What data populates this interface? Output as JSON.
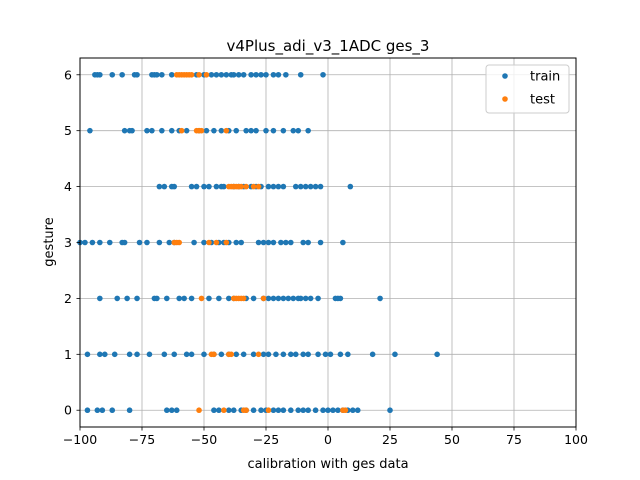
{
  "chart_data": {
    "type": "scatter",
    "title": "v4Plus_adi_v3_1ADC ges_3",
    "xlabel": "calibration with ges data",
    "ylabel": "gesture",
    "xlim": [
      -100,
      100
    ],
    "ylim": [
      -0.3,
      6.3
    ],
    "x_ticks": [
      -100,
      -75,
      -50,
      -25,
      0,
      25,
      50,
      75,
      100
    ],
    "x_tick_labels": [
      "−100",
      "−75",
      "−50",
      "−25",
      "0",
      "25",
      "50",
      "75",
      "100"
    ],
    "y_ticks": [
      0,
      1,
      2,
      3,
      4,
      5,
      6
    ],
    "y_tick_labels": [
      "0",
      "1",
      "2",
      "3",
      "4",
      "5",
      "6"
    ],
    "grid": true,
    "legend_position": "top-right",
    "series": [
      {
        "name": "train",
        "color": "#1f77b4",
        "points": [
          [
            -97,
            0
          ],
          [
            -93,
            0
          ],
          [
            -91,
            0
          ],
          [
            -87,
            0
          ],
          [
            -80,
            0
          ],
          [
            -65,
            0
          ],
          [
            -63,
            0
          ],
          [
            -61,
            0
          ],
          [
            -46,
            0
          ],
          [
            -44,
            0
          ],
          [
            -40,
            0
          ],
          [
            -38,
            0
          ],
          [
            -35,
            0
          ],
          [
            -33,
            0
          ],
          [
            -30,
            0
          ],
          [
            -27,
            0
          ],
          [
            -25,
            0
          ],
          [
            -22,
            0
          ],
          [
            -20,
            0
          ],
          [
            -18,
            0
          ],
          [
            -15,
            0
          ],
          [
            -12,
            0
          ],
          [
            -10,
            0
          ],
          [
            -8,
            0
          ],
          [
            -5,
            0
          ],
          [
            -2,
            0
          ],
          [
            0,
            0
          ],
          [
            2,
            0
          ],
          [
            4,
            0
          ],
          [
            6,
            0
          ],
          [
            8,
            0
          ],
          [
            10,
            0
          ],
          [
            12,
            0
          ],
          [
            25,
            0
          ],
          [
            -97,
            1
          ],
          [
            -92,
            1
          ],
          [
            -90,
            1
          ],
          [
            -86,
            1
          ],
          [
            -80,
            1
          ],
          [
            -77,
            1
          ],
          [
            -72,
            1
          ],
          [
            -66,
            1
          ],
          [
            -62,
            1
          ],
          [
            -57,
            1
          ],
          [
            -55,
            1
          ],
          [
            -50,
            1
          ],
          [
            -46,
            1
          ],
          [
            -43,
            1
          ],
          [
            -40,
            1
          ],
          [
            -37,
            1
          ],
          [
            -34,
            1
          ],
          [
            -30,
            1
          ],
          [
            -26,
            1
          ],
          [
            -24,
            1
          ],
          [
            -21,
            1
          ],
          [
            -18,
            1
          ],
          [
            -15,
            1
          ],
          [
            -13,
            1
          ],
          [
            -10,
            1
          ],
          [
            -8,
            1
          ],
          [
            -4,
            1
          ],
          [
            -1,
            1
          ],
          [
            1,
            1
          ],
          [
            5,
            1
          ],
          [
            8,
            1
          ],
          [
            18,
            1
          ],
          [
            27,
            1
          ],
          [
            44,
            1
          ],
          [
            -92,
            2
          ],
          [
            -85,
            2
          ],
          [
            -81,
            2
          ],
          [
            -77,
            2
          ],
          [
            -70,
            2
          ],
          [
            -69,
            2
          ],
          [
            -65,
            2
          ],
          [
            -60,
            2
          ],
          [
            -58,
            2
          ],
          [
            -55,
            2
          ],
          [
            -48,
            2
          ],
          [
            -44,
            2
          ],
          [
            -40,
            2
          ],
          [
            -38,
            2
          ],
          [
            -33,
            2
          ],
          [
            -30,
            2
          ],
          [
            -26,
            2
          ],
          [
            -24,
            2
          ],
          [
            -22,
            2
          ],
          [
            -20,
            2
          ],
          [
            -18,
            2
          ],
          [
            -16,
            2
          ],
          [
            -14,
            2
          ],
          [
            -12,
            2
          ],
          [
            -11,
            2
          ],
          [
            -9,
            2
          ],
          [
            -7,
            2
          ],
          [
            -4,
            2
          ],
          [
            3,
            2
          ],
          [
            4,
            2
          ],
          [
            5,
            2
          ],
          [
            21,
            2
          ],
          [
            -100,
            3
          ],
          [
            -98,
            3
          ],
          [
            -95,
            3
          ],
          [
            -92,
            3
          ],
          [
            -88,
            3
          ],
          [
            -83,
            3
          ],
          [
            -82,
            3
          ],
          [
            -76,
            3
          ],
          [
            -73,
            3
          ],
          [
            -68,
            3
          ],
          [
            -64,
            3
          ],
          [
            -62,
            3
          ],
          [
            -54,
            3
          ],
          [
            -50,
            3
          ],
          [
            -47,
            3
          ],
          [
            -44,
            3
          ],
          [
            -42,
            3
          ],
          [
            -40,
            3
          ],
          [
            -37,
            3
          ],
          [
            -35,
            3
          ],
          [
            -28,
            3
          ],
          [
            -26,
            3
          ],
          [
            -24,
            3
          ],
          [
            -22,
            3
          ],
          [
            -19,
            3
          ],
          [
            -17,
            3
          ],
          [
            -15,
            3
          ],
          [
            -10,
            3
          ],
          [
            -8,
            3
          ],
          [
            -3,
            3
          ],
          [
            6,
            3
          ],
          [
            -68,
            4
          ],
          [
            -66,
            4
          ],
          [
            -63,
            4
          ],
          [
            -62,
            4
          ],
          [
            -55,
            4
          ],
          [
            -53,
            4
          ],
          [
            -50,
            4
          ],
          [
            -48,
            4
          ],
          [
            -45,
            4
          ],
          [
            -43,
            4
          ],
          [
            -42,
            4
          ],
          [
            -38,
            4
          ],
          [
            -36,
            4
          ],
          [
            -34,
            4
          ],
          [
            -31,
            4
          ],
          [
            -29,
            4
          ],
          [
            -27,
            4
          ],
          [
            -24,
            4
          ],
          [
            -22,
            4
          ],
          [
            -20,
            4
          ],
          [
            -18,
            4
          ],
          [
            -13,
            4
          ],
          [
            -11,
            4
          ],
          [
            -9,
            4
          ],
          [
            -7,
            4
          ],
          [
            -5,
            4
          ],
          [
            -3,
            4
          ],
          [
            9,
            4
          ],
          [
            -96,
            5
          ],
          [
            -82,
            5
          ],
          [
            -80,
            5
          ],
          [
            -79,
            5
          ],
          [
            -73,
            5
          ],
          [
            -71,
            5
          ],
          [
            -67,
            5
          ],
          [
            -63,
            5
          ],
          [
            -60,
            5
          ],
          [
            -57,
            5
          ],
          [
            -52,
            5
          ],
          [
            -49,
            5
          ],
          [
            -46,
            5
          ],
          [
            -43,
            5
          ],
          [
            -40,
            5
          ],
          [
            -37,
            5
          ],
          [
            -33,
            5
          ],
          [
            -31,
            5
          ],
          [
            -29,
            5
          ],
          [
            -25,
            5
          ],
          [
            -22,
            5
          ],
          [
            -18,
            5
          ],
          [
            -14,
            5
          ],
          [
            -12,
            5
          ],
          [
            -8,
            5
          ],
          [
            -94,
            6
          ],
          [
            -93,
            6
          ],
          [
            -92,
            6
          ],
          [
            -87,
            6
          ],
          [
            -83,
            6
          ],
          [
            -78,
            6
          ],
          [
            -77,
            6
          ],
          [
            -71,
            6
          ],
          [
            -70,
            6
          ],
          [
            -69,
            6
          ],
          [
            -67,
            6
          ],
          [
            -63,
            6
          ],
          [
            -53,
            6
          ],
          [
            -50,
            6
          ],
          [
            -47,
            6
          ],
          [
            -45,
            6
          ],
          [
            -43,
            6
          ],
          [
            -41,
            6
          ],
          [
            -39,
            6
          ],
          [
            -38,
            6
          ],
          [
            -36,
            6
          ],
          [
            -34,
            6
          ],
          [
            -31,
            6
          ],
          [
            -29,
            6
          ],
          [
            -27,
            6
          ],
          [
            -25,
            6
          ],
          [
            -22,
            6
          ],
          [
            -20,
            6
          ],
          [
            -17,
            6
          ],
          [
            -11,
            6
          ],
          [
            -2,
            6
          ]
        ]
      },
      {
        "name": "test",
        "color": "#ff7f0e",
        "points": [
          [
            -52,
            0
          ],
          [
            -42,
            0
          ],
          [
            -34,
            0
          ],
          [
            -33,
            0
          ],
          [
            -24,
            0
          ],
          [
            6,
            0
          ],
          [
            7,
            0
          ],
          [
            -47,
            1
          ],
          [
            -46,
            1
          ],
          [
            -40,
            1
          ],
          [
            -39,
            1
          ],
          [
            -28,
            1
          ],
          [
            -51,
            2
          ],
          [
            -38,
            2
          ],
          [
            -37,
            2
          ],
          [
            -36,
            2
          ],
          [
            -35,
            2
          ],
          [
            -34,
            2
          ],
          [
            -26,
            2
          ],
          [
            -62,
            3
          ],
          [
            -61,
            3
          ],
          [
            -60,
            3
          ],
          [
            -48,
            3
          ],
          [
            -45,
            3
          ],
          [
            -41,
            3
          ],
          [
            -40,
            4
          ],
          [
            -39,
            4
          ],
          [
            -38,
            4
          ],
          [
            -37,
            4
          ],
          [
            -36,
            4
          ],
          [
            -35,
            4
          ],
          [
            -33,
            4
          ],
          [
            -30,
            4
          ],
          [
            -28,
            4
          ],
          [
            -59,
            5
          ],
          [
            -53,
            5
          ],
          [
            -52,
            5
          ],
          [
            -51,
            5
          ],
          [
            -41,
            5
          ],
          [
            -61,
            6
          ],
          [
            -60,
            6
          ],
          [
            -59,
            6
          ],
          [
            -58,
            6
          ],
          [
            -57,
            6
          ],
          [
            -56,
            6
          ],
          [
            -55,
            6
          ],
          [
            -52,
            6
          ],
          [
            -49,
            6
          ]
        ]
      }
    ]
  }
}
